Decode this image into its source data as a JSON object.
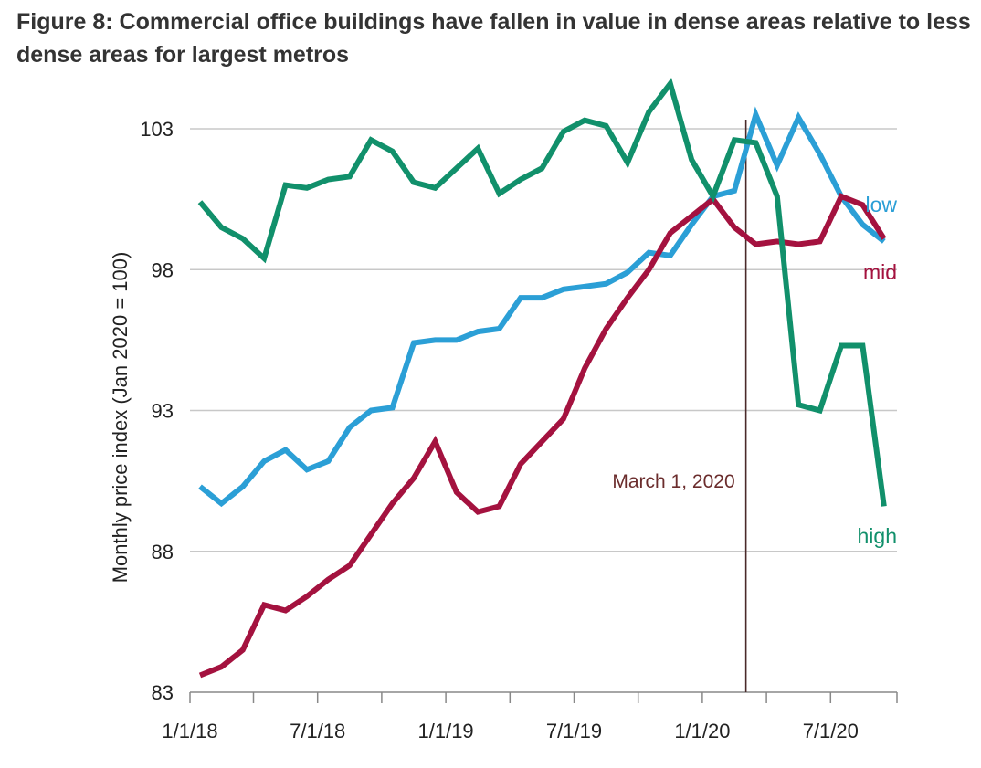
{
  "chart_data": {
    "type": "line",
    "title": "Figure 8: Commercial office buildings have fallen in value in dense areas relative to less dense areas for largest metros",
    "ylabel": "Monthly price index (Jan 2020 = 100)",
    "xlabel": "",
    "ylim": [
      83,
      103
    ],
    "yticks": [
      83,
      88,
      93,
      98,
      103
    ],
    "xtick_labels": [
      "1/1/18",
      "7/1/18",
      "1/1/19",
      "7/1/19",
      "1/1/20",
      "7/1/20"
    ],
    "x": [
      "2018-01",
      "2018-02",
      "2018-03",
      "2018-04",
      "2018-05",
      "2018-06",
      "2018-07",
      "2018-08",
      "2018-09",
      "2018-10",
      "2018-11",
      "2018-12",
      "2019-01",
      "2019-02",
      "2019-03",
      "2019-04",
      "2019-05",
      "2019-06",
      "2019-07",
      "2019-08",
      "2019-09",
      "2019-10",
      "2019-11",
      "2019-12",
      "2020-01",
      "2020-02",
      "2020-03",
      "2020-04",
      "2020-05",
      "2020-06",
      "2020-07",
      "2020-08",
      "2020-09"
    ],
    "grid": true,
    "series": [
      {
        "name": "low",
        "color": "#2b9fd6",
        "values": [
          90.3,
          89.7,
          90.3,
          91.2,
          91.6,
          90.9,
          91.2,
          92.4,
          93.0,
          93.1,
          95.4,
          95.5,
          95.5,
          95.8,
          95.9,
          97.0,
          97.0,
          97.3,
          97.4,
          97.5,
          97.9,
          98.6,
          98.5,
          99.6,
          100.6,
          100.8,
          103.5,
          101.7,
          103.4,
          102.1,
          100.6,
          99.6,
          99.0
        ]
      },
      {
        "name": "mid",
        "color": "#a4123f",
        "values": [
          83.6,
          83.9,
          84.5,
          86.1,
          85.9,
          86.4,
          87.0,
          87.5,
          88.6,
          89.7,
          90.6,
          91.9,
          90.1,
          89.4,
          89.6,
          91.1,
          91.9,
          92.7,
          94.5,
          95.9,
          97.0,
          98.0,
          99.3,
          99.9,
          100.5,
          99.5,
          98.9,
          99.0,
          98.9,
          99.0,
          100.6,
          100.3,
          99.1
        ]
      },
      {
        "name": "high",
        "color": "#11906b",
        "values": [
          100.4,
          99.5,
          99.1,
          98.4,
          101.0,
          100.9,
          101.2,
          101.3,
          102.6,
          102.2,
          101.1,
          100.9,
          101.6,
          102.3,
          100.7,
          101.2,
          101.6,
          102.9,
          103.3,
          103.1,
          101.8,
          103.6,
          104.6,
          101.9,
          100.6,
          102.6,
          102.5,
          100.6,
          93.2,
          93.0,
          95.3,
          95.3,
          89.6
        ]
      }
    ],
    "annotations": [
      {
        "text": "March 1, 2020",
        "x": "2020-03",
        "color": "#6b2d2d"
      }
    ]
  }
}
